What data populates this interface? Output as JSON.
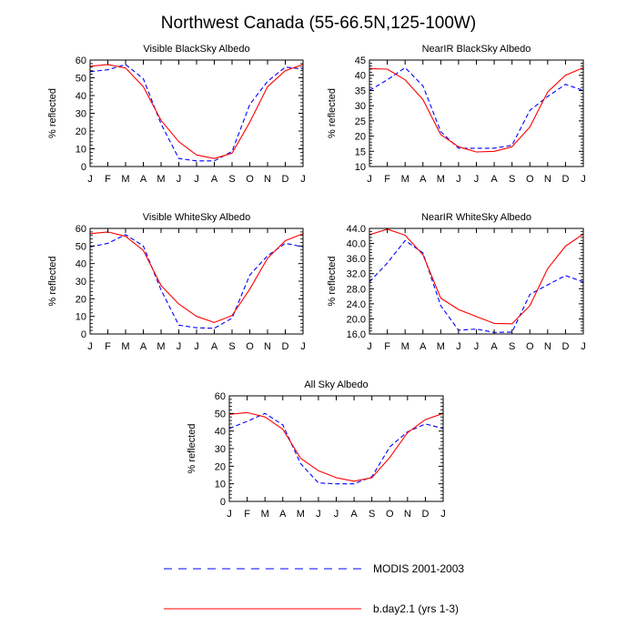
{
  "figure": {
    "title": "Northwest Canada (55-66.5N,125-100W)"
  },
  "legend": {
    "items": [
      {
        "label": "MODIS 2001-2003",
        "color": "#0000ff",
        "dash": "dashed"
      },
      {
        "label": "b.day2.1 (yrs 1-3)",
        "color": "#ff0000",
        "dash": "solid"
      }
    ]
  },
  "chart_data": [
    {
      "type": "line",
      "title": "Visible BlackSky Albedo",
      "ylabel": "% reflected",
      "categories": [
        "J",
        "F",
        "M",
        "A",
        "M",
        "J",
        "J",
        "A",
        "S",
        "O",
        "N",
        "D",
        "J"
      ],
      "ylim": [
        0,
        60
      ],
      "yticks": [
        0,
        10,
        20,
        30,
        40,
        50,
        60
      ],
      "ytick_labels": [
        "0",
        "10",
        "20",
        "30",
        "40",
        "50",
        "60"
      ],
      "series": [
        {
          "name": "MODIS 2001-2003",
          "color": "#0000ff",
          "dash": "dashed",
          "values": [
            53.5,
            54.5,
            57.5,
            49.5,
            24,
            4.5,
            3.2,
            3.2,
            8.5,
            35,
            48,
            56,
            55
          ]
        },
        {
          "name": "b.day2.1 (yrs 1-3)",
          "color": "#ff0000",
          "dash": "solid",
          "values": [
            56.5,
            57.5,
            55.5,
            45,
            26,
            14,
            6.5,
            4.5,
            7.5,
            25,
            45,
            54,
            57.5
          ]
        }
      ]
    },
    {
      "type": "line",
      "title": "NearIR BlackSky Albedo",
      "ylabel": "% reflected",
      "categories": [
        "J",
        "F",
        "M",
        "A",
        "M",
        "J",
        "J",
        "A",
        "S",
        "O",
        "N",
        "D",
        "J"
      ],
      "ylim": [
        10,
        45
      ],
      "yticks": [
        10,
        15,
        20,
        25,
        30,
        35,
        40,
        45
      ],
      "ytick_labels": [
        "10",
        "15",
        "20",
        "25",
        "30",
        "35",
        "40",
        "45"
      ],
      "series": [
        {
          "name": "MODIS 2001-2003",
          "color": "#0000ff",
          "dash": "dashed",
          "values": [
            35,
            38.5,
            42.5,
            36.5,
            21.5,
            16,
            16,
            16,
            17,
            28.5,
            33,
            37,
            35
          ]
        },
        {
          "name": "b.day2.1 (yrs 1-3)",
          "color": "#ff0000",
          "dash": "solid",
          "values": [
            42.2,
            42,
            38.5,
            32,
            20.5,
            16.5,
            14.8,
            15,
            16.5,
            23,
            34.5,
            40,
            42.5
          ]
        }
      ]
    },
    {
      "type": "line",
      "title": "Visible WhiteSky Albedo",
      "ylabel": "% reflected",
      "categories": [
        "J",
        "F",
        "M",
        "A",
        "M",
        "J",
        "J",
        "A",
        "S",
        "O",
        "N",
        "D",
        "J"
      ],
      "ylim": [
        0,
        60
      ],
      "yticks": [
        0,
        10,
        20,
        30,
        40,
        50,
        60
      ],
      "ytick_labels": [
        "0",
        "10",
        "20",
        "30",
        "40",
        "50",
        "60"
      ],
      "series": [
        {
          "name": "MODIS 2001-2003",
          "color": "#0000ff",
          "dash": "dashed",
          "values": [
            49.5,
            51.5,
            56.5,
            50,
            25,
            5,
            3.5,
            3.2,
            9,
            33.5,
            44.5,
            51.5,
            49.5
          ]
        },
        {
          "name": "b.day2.1 (yrs 1-3)",
          "color": "#ff0000",
          "dash": "solid",
          "values": [
            57,
            58,
            55.5,
            47.5,
            27.5,
            17,
            10,
            6.5,
            10.5,
            25.5,
            43,
            53,
            57
          ]
        }
      ]
    },
    {
      "type": "line",
      "title": "NearIR WhiteSky Albedo",
      "ylabel": "% reflected",
      "categories": [
        "J",
        "F",
        "M",
        "A",
        "M",
        "J",
        "J",
        "A",
        "S",
        "O",
        "N",
        "D",
        "J"
      ],
      "ylim": [
        16,
        44
      ],
      "yticks": [
        16,
        20,
        24,
        28,
        32,
        36,
        40,
        44
      ],
      "ytick_labels": [
        "16.0",
        "20.0",
        "24.0",
        "28.0",
        "32.0",
        "36.0",
        "40.0",
        "44.0"
      ],
      "series": [
        {
          "name": "MODIS 2001-2003",
          "color": "#0000ff",
          "dash": "dashed",
          "values": [
            29.8,
            34.8,
            40.8,
            37.5,
            23.5,
            17,
            17.3,
            16.4,
            16.5,
            26.5,
            29,
            31.5,
            29.8
          ]
        },
        {
          "name": "b.day2.1 (yrs 1-3)",
          "color": "#ff0000",
          "dash": "solid",
          "values": [
            42.3,
            43.8,
            42.2,
            37,
            25.5,
            22.5,
            20.6,
            18.8,
            18.7,
            23.5,
            33.3,
            39.3,
            42.5
          ]
        }
      ]
    },
    {
      "type": "line",
      "title": "All Sky Albedo",
      "ylabel": "% reflected",
      "categories": [
        "J",
        "F",
        "M",
        "A",
        "M",
        "J",
        "J",
        "A",
        "S",
        "O",
        "N",
        "D",
        "J"
      ],
      "ylim": [
        0,
        60
      ],
      "yticks": [
        0,
        10,
        20,
        30,
        40,
        50,
        60
      ],
      "ytick_labels": [
        "0",
        "10",
        "20",
        "30",
        "40",
        "50",
        "60"
      ],
      "series": [
        {
          "name": "MODIS 2001-2003",
          "color": "#0000ff",
          "dash": "dashed",
          "values": [
            41.5,
            45.5,
            50,
            43.5,
            21.5,
            10.5,
            10,
            10,
            14,
            31,
            39.5,
            44,
            41.5
          ]
        },
        {
          "name": "b.day2.1 (yrs 1-3)",
          "color": "#ff0000",
          "dash": "solid",
          "values": [
            49.5,
            50.5,
            48,
            41,
            24.5,
            17.5,
            13.5,
            11.5,
            13.5,
            25,
            39,
            46.5,
            50
          ]
        }
      ]
    }
  ]
}
